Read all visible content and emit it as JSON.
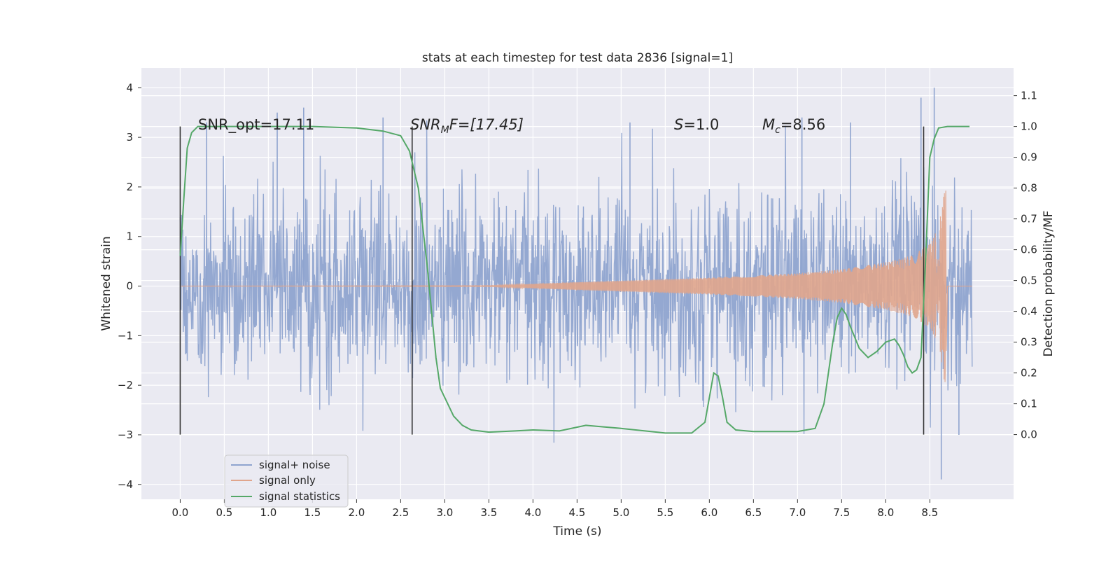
{
  "chart_data": {
    "type": "line",
    "title": "stats at each timestep for test data 2836 [signal=1]",
    "xlabel": "Time (s)",
    "ylabel": "Whitened strain",
    "ylabel_right": "Detection probability/MF",
    "xlim": [
      -0.44,
      9.45
    ],
    "ylim": [
      -4.3,
      4.4
    ],
    "ylim_right": [
      -0.21,
      1.19
    ],
    "x_ticks": [
      "0.0",
      "0.5",
      "1.0",
      "1.5",
      "2.0",
      "2.5",
      "3.0",
      "3.5",
      "4.0",
      "4.5",
      "5.0",
      "5.5",
      "6.0",
      "6.5",
      "7.0",
      "7.5",
      "8.0",
      "8.5"
    ],
    "x_tick_values": [
      0.0,
      0.5,
      1.0,
      1.5,
      2.0,
      2.5,
      3.0,
      3.5,
      4.0,
      4.5,
      5.0,
      5.5,
      6.0,
      6.5,
      7.0,
      7.5,
      8.0,
      8.5
    ],
    "y_ticks": [
      "4",
      "3",
      "2",
      "1",
      "0",
      "−1",
      "−2",
      "−3",
      "−4"
    ],
    "y_tick_values": [
      4,
      3,
      2,
      1,
      0,
      -1,
      -2,
      -3,
      -4
    ],
    "y_right_ticks": [
      "1.1",
      "1.0",
      "0.9",
      "0.8",
      "0.7",
      "0.6",
      "0.5",
      "0.4",
      "0.3",
      "0.2",
      "0.1",
      "0.0"
    ],
    "y_right_tick_values": [
      1.1,
      1.0,
      0.9,
      0.8,
      0.7,
      0.6,
      0.5,
      0.4,
      0.3,
      0.2,
      0.1,
      0.0
    ],
    "grid": true,
    "legend_position": "lower-left",
    "annotations": {
      "snr_opt": "SNR_opt=17.11",
      "snr_mf_base": "SNR",
      "snr_mf_sub": "M",
      "snr_mf_rest": "F=[17.45]",
      "s_italic": "S",
      "s_rest": "=1.0",
      "mc_italic": "M",
      "mc_sub": "c",
      "mc_rest": "=8.56"
    },
    "vertical_markers": [
      0.0,
      2.63,
      8.43
    ],
    "series": [
      {
        "name": "signal+ noise",
        "color": "#8fa4cf",
        "axis": "left",
        "style": "dense noise, std ~0.95, range about -3.9 to 4.0, x from 0.0 to 8.98",
        "x_range": [
          0.0,
          8.98
        ],
        "envelope": {
          "x": [
            0.0,
            9.0
          ],
          "lower_percentile": -1.3,
          "upper_percentile": 1.3
        },
        "sample_peaks": {
          "x": [
            0.3,
            1.1,
            1.4,
            2.3,
            5.1,
            7.05,
            7.6,
            8.4,
            8.55,
            8.63,
            8.83
          ],
          "y": [
            3.3,
            3.5,
            3.6,
            3.4,
            3.3,
            3.4,
            3.3,
            3.8,
            4.0,
            -3.9,
            -3.0
          ]
        }
      },
      {
        "name": "signal only",
        "color": "#e0a58c",
        "axis": "left",
        "style": "chirp oscillation, amplitude grows from ~0 to ~2.2 just before 8.68 then stops",
        "x": [
          0.0,
          3.5,
          4.5,
          5.0,
          5.5,
          6.0,
          6.5,
          7.0,
          7.5,
          8.0,
          8.3,
          8.5,
          8.6,
          8.65,
          8.68,
          8.7,
          9.0
        ],
        "amplitude": [
          0.0,
          0.01,
          0.08,
          0.11,
          0.14,
          0.17,
          0.21,
          0.26,
          0.34,
          0.48,
          0.62,
          0.85,
          1.2,
          1.7,
          2.2,
          0.0,
          0.0
        ]
      },
      {
        "name": "signal statistics",
        "color": "#55a868",
        "axis": "right",
        "x": [
          0.0,
          0.04,
          0.08,
          0.13,
          0.2,
          0.3,
          0.5,
          1.0,
          1.5,
          2.0,
          2.3,
          2.5,
          2.6,
          2.7,
          2.8,
          2.85,
          2.9,
          2.95,
          3.0,
          3.1,
          3.2,
          3.3,
          3.5,
          3.8,
          4.0,
          4.3,
          4.6,
          4.8,
          5.0,
          5.5,
          5.8,
          5.95,
          6.05,
          6.1,
          6.15,
          6.2,
          6.3,
          6.5,
          7.0,
          7.2,
          7.3,
          7.4,
          7.45,
          7.5,
          7.55,
          7.6,
          7.7,
          7.8,
          7.9,
          8.0,
          8.1,
          8.15,
          8.2,
          8.25,
          8.3,
          8.35,
          8.4,
          8.45,
          8.5,
          8.55,
          8.6,
          8.7,
          8.8,
          8.95
        ],
        "y": [
          0.58,
          0.76,
          0.93,
          0.98,
          1.0,
          1.0,
          1.0,
          1.0,
          1.0,
          0.995,
          0.985,
          0.97,
          0.92,
          0.8,
          0.55,
          0.4,
          0.25,
          0.15,
          0.12,
          0.06,
          0.03,
          0.015,
          0.008,
          0.012,
          0.015,
          0.012,
          0.03,
          0.025,
          0.02,
          0.005,
          0.005,
          0.04,
          0.2,
          0.19,
          0.12,
          0.04,
          0.015,
          0.01,
          0.01,
          0.02,
          0.1,
          0.3,
          0.38,
          0.41,
          0.39,
          0.35,
          0.28,
          0.25,
          0.27,
          0.3,
          0.31,
          0.29,
          0.26,
          0.22,
          0.2,
          0.21,
          0.25,
          0.55,
          0.9,
          0.96,
          0.995,
          1.0,
          1.0,
          1.0
        ]
      }
    ]
  }
}
